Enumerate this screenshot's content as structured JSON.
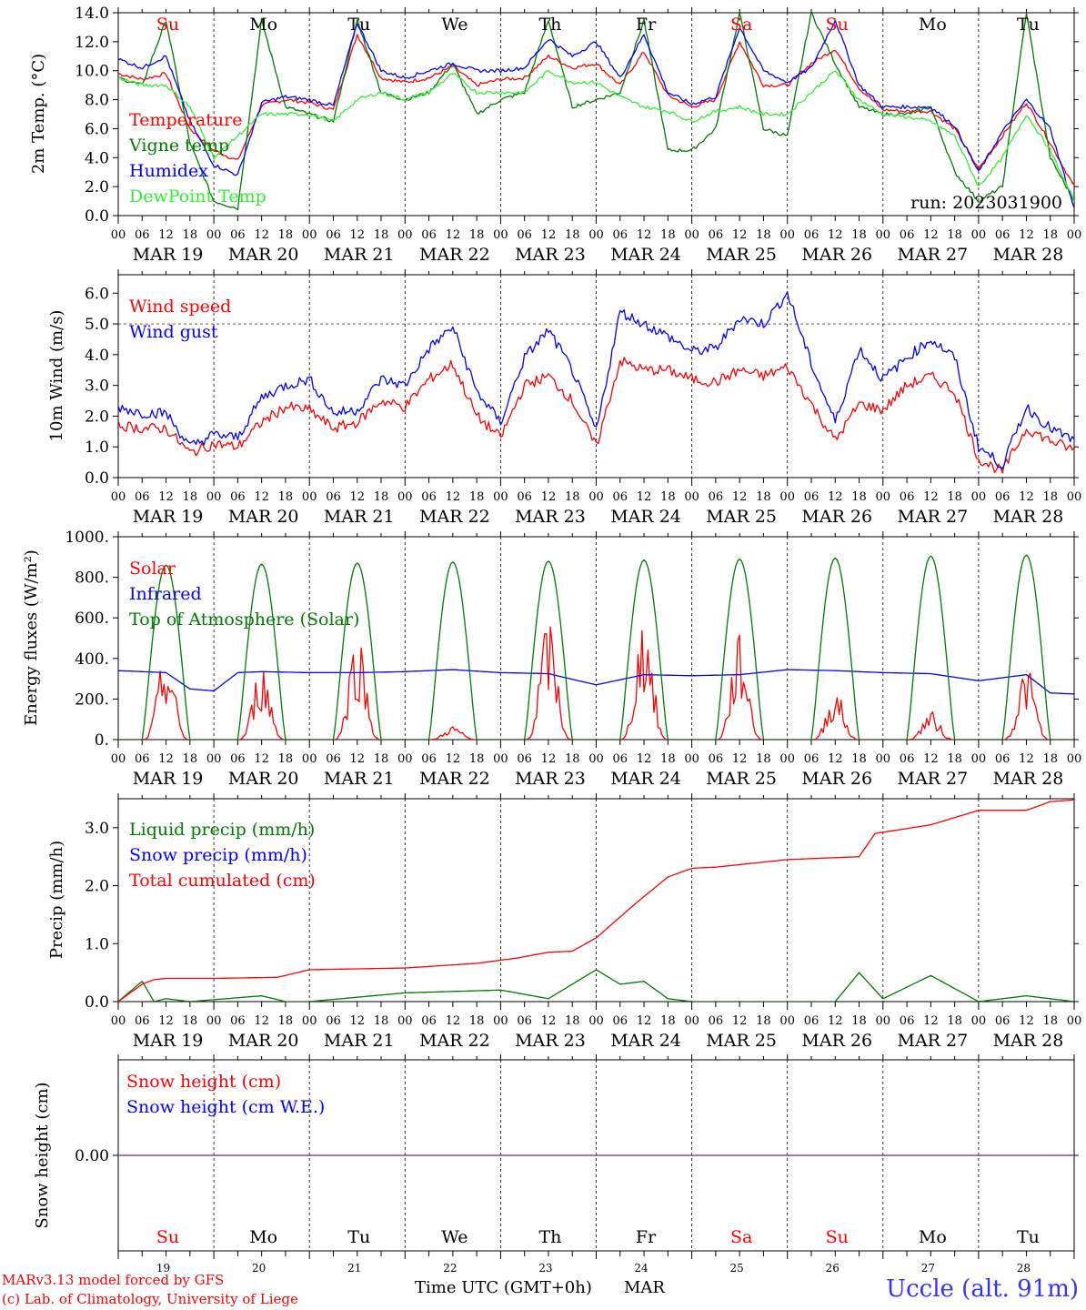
{
  "footer": {
    "model": "MARv3.13 model forced by GFS",
    "copyright": "(c) Lab. of Climatology, University of Liege",
    "station": "Uccle (alt. 91m)",
    "time_axis_label": "Time UTC (GMT+0h)",
    "month_label": "MAR"
  },
  "days": [
    {
      "abbr": "Su",
      "date": "MAR 19",
      "num": "19",
      "weekend": true
    },
    {
      "abbr": "Mo",
      "date": "MAR 20",
      "num": "20",
      "weekend": false
    },
    {
      "abbr": "Tu",
      "date": "MAR 21",
      "num": "21",
      "weekend": false
    },
    {
      "abbr": "We",
      "date": "MAR 22",
      "num": "22",
      "weekend": false
    },
    {
      "abbr": "Th",
      "date": "MAR 23",
      "num": "23",
      "weekend": false
    },
    {
      "abbr": "Fr",
      "date": "MAR 24",
      "num": "24",
      "weekend": false
    },
    {
      "abbr": "Sa",
      "date": "MAR 25",
      "num": "25",
      "weekend": true
    },
    {
      "abbr": "Su",
      "date": "MAR 26",
      "num": "26",
      "weekend": true
    },
    {
      "abbr": "Mo",
      "date": "MAR 27",
      "num": "27",
      "weekend": false
    },
    {
      "abbr": "Tu",
      "date": "MAR 28",
      "num": "28",
      "weekend": false
    }
  ],
  "hour_ticks": [
    "00",
    "06",
    "12",
    "18"
  ],
  "colors": {
    "red": "#ff0000",
    "green": "#007a00",
    "blue": "#0000ff",
    "lightgreen": "#33ee33",
    "purple": "#8040a0",
    "weekend": "#ff0000",
    "station": "#3333ff"
  },
  "chart_data": [
    {
      "type": "line",
      "ylabel": "2m Temp. (°C)",
      "ylim": [
        0,
        14
      ],
      "ytick_labels": [
        "0.0",
        "2.0",
        "4.0",
        "6.0",
        "8.0",
        "10.0",
        "12.0",
        "14.0"
      ],
      "annotation": "run: 2023031900",
      "x_hours": [
        0,
        6,
        12,
        18,
        24,
        30,
        36,
        42,
        48,
        54,
        60,
        66,
        72,
        78,
        84,
        90,
        96,
        102,
        108,
        114,
        120,
        126,
        132,
        138,
        144,
        150,
        156,
        162,
        168,
        174,
        180,
        186,
        192,
        198,
        204,
        210,
        216,
        222,
        228,
        234,
        240
      ],
      "series": [
        {
          "name": "Temperature",
          "color": "red",
          "values": [
            9.8,
            9.4,
            9.8,
            6,
            4.5,
            3.8,
            7.6,
            8,
            7.8,
            7.3,
            12.5,
            9.5,
            9.2,
            9.5,
            10.3,
            9,
            9.4,
            9.5,
            11,
            10.2,
            10.5,
            9,
            11.3,
            8.3,
            7.5,
            8,
            12,
            9,
            9,
            10.5,
            11.5,
            8.8,
            7.3,
            7.2,
            7.2,
            6,
            3.2,
            5.5,
            7.8,
            5,
            2
          ]
        },
        {
          "name": "Vigne temp",
          "color": "green",
          "values": [
            9.5,
            9,
            13.5,
            5,
            1,
            0.5,
            13.5,
            7.5,
            7,
            6.5,
            13.5,
            8.5,
            8,
            8.5,
            10.5,
            7,
            8,
            8.5,
            13.5,
            7.5,
            8,
            8.5,
            13.5,
            4.5,
            4.5,
            6,
            14,
            6,
            5.5,
            14,
            10.5,
            7.5,
            7,
            7,
            7.5,
            3,
            1,
            2,
            14,
            4,
            1
          ]
        },
        {
          "name": "Humidex",
          "color": "blue",
          "values": [
            10.8,
            10.2,
            11,
            6.5,
            3.5,
            2.8,
            7.8,
            8.2,
            8,
            7.6,
            13.3,
            10,
            9.5,
            10,
            10.5,
            10,
            10,
            10.2,
            12.2,
            11,
            12,
            9.5,
            12.5,
            8.5,
            7.7,
            8.2,
            13,
            10,
            9.2,
            10.2,
            13.5,
            9,
            7.5,
            7.5,
            7.5,
            6.2,
            3,
            5.8,
            8,
            6,
            0.5
          ]
        },
        {
          "name": "DewPoint Temp",
          "color": "lightgreen",
          "values": [
            9.5,
            9,
            9,
            7.5,
            4,
            5.5,
            7,
            7,
            7,
            6.5,
            8,
            8.5,
            8,
            8.5,
            9.8,
            8.5,
            8.5,
            8.5,
            10,
            9.2,
            9.2,
            8.2,
            7.5,
            7.2,
            6.5,
            7.2,
            7.5,
            7,
            7,
            8.5,
            10,
            8,
            7,
            6.8,
            6.5,
            5.5,
            2,
            4,
            7,
            4.5,
            1
          ]
        }
      ]
    },
    {
      "type": "line",
      "ylabel": "10m Wind (m/s)",
      "ylim": [
        0,
        6.6
      ],
      "ytick_labels": [
        "0.0",
        "1.0",
        "2.0",
        "3.0",
        "4.0",
        "5.0",
        "6.0"
      ],
      "x_hours": [
        0,
        6,
        12,
        18,
        24,
        30,
        36,
        42,
        48,
        54,
        60,
        66,
        72,
        78,
        84,
        90,
        96,
        102,
        108,
        114,
        120,
        126,
        132,
        138,
        144,
        150,
        156,
        162,
        168,
        174,
        180,
        186,
        192,
        198,
        204,
        210,
        216,
        222,
        228,
        234,
        240
      ],
      "series": [
        {
          "name": "Wind speed",
          "color": "red",
          "values": [
            1.7,
            1.6,
            1.6,
            0.8,
            1.1,
            1,
            1.8,
            2.3,
            2.2,
            1.6,
            1.8,
            2.5,
            2.3,
            3.2,
            3.7,
            2,
            1.3,
            3,
            3.3,
            2.5,
            1,
            3.8,
            3.5,
            3.5,
            3.2,
            3.1,
            3.5,
            3.3,
            3.6,
            2.4,
            1.2,
            2.4,
            2.2,
            3,
            3.3,
            2.8,
            0.6,
            0.2,
            1.6,
            1.2,
            0.9
          ]
        },
        {
          "name": "Wind gust",
          "color": "blue",
          "values": [
            2.3,
            2.1,
            2.1,
            1,
            1.4,
            1.3,
            2.6,
            3,
            3.2,
            2.1,
            2.2,
            3.2,
            3,
            4.2,
            4.9,
            2.8,
            1.8,
            3.9,
            4.8,
            3.5,
            1.5,
            5.4,
            5,
            4.6,
            4.1,
            4.2,
            5.2,
            5,
            6,
            3.7,
            1.8,
            4.2,
            3.2,
            3.9,
            4.5,
            3.9,
            1,
            0.4,
            2.3,
            1.6,
            1.2
          ]
        }
      ]
    },
    {
      "type": "line",
      "ylabel": "Energy fluxes (W/m²)",
      "ylim": [
        0,
        1000
      ],
      "ytick_labels": [
        "0.",
        "200.",
        "400.",
        "600.",
        "800.",
        "1000."
      ],
      "series": [
        {
          "name": "Solar",
          "color": "red",
          "peaks": [
            430,
            380,
            540,
            70,
            590,
            620,
            520,
            250,
            140,
            370
          ]
        },
        {
          "name": "Infrared",
          "color": "blue",
          "x_hours": [
            0,
            12,
            18,
            24,
            30,
            36,
            48,
            60,
            72,
            84,
            96,
            108,
            120,
            132,
            144,
            156,
            168,
            180,
            192,
            204,
            216,
            228,
            234,
            240
          ],
          "values": [
            340,
            330,
            250,
            240,
            330,
            335,
            330,
            330,
            335,
            345,
            330,
            325,
            270,
            320,
            315,
            320,
            345,
            340,
            330,
            325,
            290,
            320,
            230,
            225
          ]
        },
        {
          "name": "Top of Atmosphere (Solar)",
          "color": "green",
          "peaks": [
            860,
            865,
            870,
            875,
            880,
            885,
            890,
            895,
            905,
            910
          ]
        }
      ]
    },
    {
      "type": "line",
      "ylabel": "Precip (mm/h)",
      "ylim": [
        0,
        3.5
      ],
      "ytick_labels": [
        "0.0",
        "1.0",
        "2.0",
        "3.0"
      ],
      "series": [
        {
          "name": "Liquid precip (mm/h)",
          "color": "green",
          "x_hours": [
            0,
            6,
            9,
            12,
            18,
            36,
            42,
            48,
            72,
            96,
            108,
            120,
            126,
            132,
            138,
            144,
            168,
            180,
            186,
            192,
            204,
            216,
            228,
            240
          ],
          "values": [
            0,
            0.35,
            0,
            0.05,
            0,
            0.1,
            0,
            0,
            0.15,
            0.2,
            0.05,
            0.55,
            0.3,
            0.35,
            0.05,
            0,
            0,
            0,
            0.5,
            0.05,
            0.45,
            0,
            0.1,
            0
          ]
        },
        {
          "name": "Snow precip (mm/h)",
          "color": "blue",
          "x_hours": [],
          "values": []
        },
        {
          "name": "Total cumulated (cm)",
          "color": "red",
          "x_hours": [
            0,
            6,
            9,
            12,
            24,
            40,
            48,
            72,
            90,
            100,
            108,
            114,
            120,
            130,
            138,
            144,
            150,
            168,
            186,
            190,
            204,
            216,
            228,
            234,
            240
          ],
          "values": [
            0,
            0.3,
            0.38,
            0.4,
            0.4,
            0.42,
            0.55,
            0.58,
            0.66,
            0.75,
            0.85,
            0.87,
            1.1,
            1.7,
            2.15,
            2.3,
            2.32,
            2.45,
            2.5,
            2.9,
            3.05,
            3.3,
            3.3,
            3.45,
            3.48
          ]
        }
      ]
    },
    {
      "type": "line",
      "ylabel": "Snow height (cm)",
      "ylim": [
        -1,
        1
      ],
      "ytick_labels": [
        "0.00"
      ],
      "series": [
        {
          "name": "Snow height (cm)",
          "color": "red",
          "x_hours": [
            0,
            240
          ],
          "values": [
            0,
            0
          ]
        },
        {
          "name": "Snow height (cm W.E.)",
          "color": "blue",
          "x_hours": [
            0,
            240
          ],
          "values": [
            0,
            0
          ]
        }
      ]
    }
  ]
}
